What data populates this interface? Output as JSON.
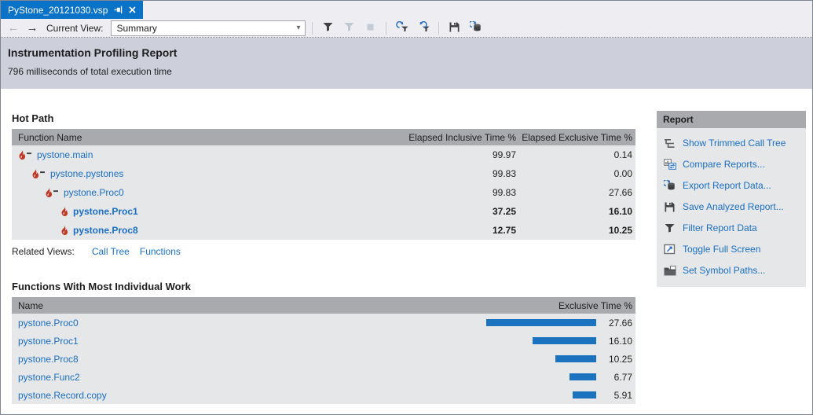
{
  "tab": {
    "title": "PyStone_20121030.vsp"
  },
  "toolbar": {
    "back_icon": "←",
    "forward_icon": "→",
    "current_view_label": "Current View:",
    "view_value": "Summary",
    "dropdown_caret": "▾"
  },
  "report_header": {
    "title": "Instrumentation Profiling Report",
    "subtitle": "796 milliseconds of total execution time"
  },
  "hot_path": {
    "title": "Hot Path",
    "columns": {
      "name": "Function Name",
      "inclusive": "Elapsed Inclusive Time %",
      "exclusive": "Elapsed Exclusive Time %"
    },
    "rows": [
      {
        "name": "pystone.main",
        "inclusive": "99.97",
        "exclusive": "0.14"
      },
      {
        "name": "pystone.pystones",
        "inclusive": "99.83",
        "exclusive": "0.00"
      },
      {
        "name": "pystone.Proc0",
        "inclusive": "99.83",
        "exclusive": "27.66"
      },
      {
        "name": "pystone.Proc1",
        "inclusive": "37.25",
        "exclusive": "16.10"
      },
      {
        "name": "pystone.Proc8",
        "inclusive": "12.75",
        "exclusive": "10.25"
      }
    ],
    "related_views_label": "Related Views:",
    "related_links": [
      "Call Tree",
      "Functions"
    ]
  },
  "functions_work": {
    "title": "Functions With Most Individual Work",
    "columns": {
      "name": "Name",
      "exclusive": "Exclusive Time %"
    },
    "rows": [
      {
        "name": "pystone.Proc0",
        "value": 27.66,
        "display": "27.66"
      },
      {
        "name": "pystone.Proc1",
        "value": 16.1,
        "display": "16.10"
      },
      {
        "name": "pystone.Proc8",
        "value": 10.25,
        "display": "10.25"
      },
      {
        "name": "pystone.Func2",
        "value": 6.77,
        "display": "6.77"
      },
      {
        "name": "pystone.Record.copy",
        "value": 5.91,
        "display": "5.91"
      }
    ]
  },
  "report_panel": {
    "title": "Report",
    "items": [
      {
        "label": "Show Trimmed Call Tree"
      },
      {
        "label": "Compare Reports..."
      },
      {
        "label": "Export Report Data..."
      },
      {
        "label": "Save Analyzed Report..."
      },
      {
        "label": "Filter Report Data"
      },
      {
        "label": "Toggle Full Screen"
      },
      {
        "label": "Set Symbol Paths..."
      }
    ]
  },
  "colors": {
    "active_tab": "#0a72c7",
    "link_blue": "#1a6fc4",
    "bar_blue": "#1b73c0",
    "table_header_gray": "#a8aaad",
    "table_body_gray": "#e6e7e8",
    "doc_header_band": "#cdd0db",
    "flame_red": "#be3a26"
  }
}
